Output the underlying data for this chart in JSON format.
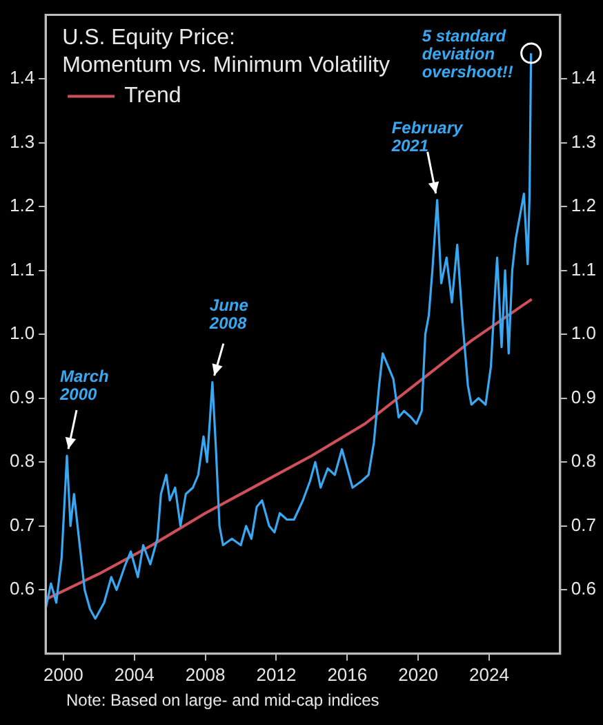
{
  "chart_data": {
    "type": "line",
    "title": "U.S. Equity Price:",
    "subtitle": "Momentum vs. Minimum Volatility",
    "xlim": [
      1999,
      2028
    ],
    "xticks": [
      2000,
      2004,
      2008,
      2012,
      2016,
      2020,
      2024
    ],
    "ylim": [
      0.5,
      1.5
    ],
    "yticks": [
      0.6,
      0.7,
      0.8,
      0.9,
      {
        "value": 1,
        "label": "1.0"
      },
      1.1,
      1.2,
      1.3,
      1.4
    ],
    "y2lim": [
      0.5,
      1.5
    ],
    "y2ticks": [
      0.6,
      0.7,
      0.8,
      0.9,
      {
        "value": 1,
        "label": "1.0"
      },
      1.1,
      1.2,
      1.3,
      1.4
    ],
    "grid": false,
    "legend": "top left",
    "marker": "none",
    "line_style": "solid",
    "series": [
      {
        "color": "#38a8f2",
        "x": [
          1999.0,
          1999.3,
          1999.6,
          1999.9,
          2000.2,
          2000.4,
          2000.6,
          2000.8,
          2001.0,
          2001.2,
          2001.5,
          2001.8,
          2002.3,
          2002.7,
          2003.0,
          2003.5,
          2003.8,
          2004.2,
          2004.5,
          2004.9,
          2005.3,
          2005.5,
          2005.8,
          2006.0,
          2006.3,
          2006.6,
          2006.9,
          2007.3,
          2007.6,
          2007.9,
          2008.1,
          2008.4,
          2008.6,
          2008.8,
          2009.0,
          2009.5,
          2010.0,
          2010.3,
          2010.6,
          2010.9,
          2011.2,
          2011.6,
          2011.9,
          2012.2,
          2012.6,
          2013.0,
          2013.5,
          2013.9,
          2014.2,
          2014.5,
          2014.9,
          2015.3,
          2015.7,
          2016.0,
          2016.3,
          2016.8,
          2017.2,
          2017.5,
          2017.8,
          2018.0,
          2018.3,
          2018.6,
          2018.9,
          2019.2,
          2019.6,
          2019.9,
          2020.2,
          2020.4,
          2020.6,
          2020.8,
          2021.07,
          2021.3,
          2021.6,
          2021.9,
          2022.2,
          2022.5,
          2022.8,
          2023.0,
          2023.4,
          2023.8,
          2024.1,
          2024.3,
          2024.45,
          2024.7,
          2024.9,
          2025.1,
          2025.3,
          2025.5,
          2025.96,
          2026.17,
          2026.28,
          2026.36
        ],
        "values": [
          0.57,
          0.61,
          0.58,
          0.65,
          0.81,
          0.7,
          0.75,
          0.7,
          0.65,
          0.6,
          0.57,
          0.555,
          0.58,
          0.62,
          0.6,
          0.64,
          0.66,
          0.62,
          0.67,
          0.64,
          0.68,
          0.75,
          0.78,
          0.74,
          0.76,
          0.7,
          0.75,
          0.76,
          0.78,
          0.84,
          0.8,
          0.925,
          0.82,
          0.7,
          0.67,
          0.68,
          0.67,
          0.7,
          0.68,
          0.73,
          0.74,
          0.7,
          0.69,
          0.72,
          0.71,
          0.71,
          0.74,
          0.77,
          0.8,
          0.76,
          0.79,
          0.78,
          0.82,
          0.79,
          0.76,
          0.77,
          0.78,
          0.83,
          0.92,
          0.97,
          0.95,
          0.93,
          0.87,
          0.88,
          0.87,
          0.86,
          0.88,
          1.0,
          1.03,
          1.1,
          1.21,
          1.08,
          1.12,
          1.05,
          1.14,
          1.02,
          0.92,
          0.89,
          0.9,
          0.89,
          0.95,
          1.05,
          1.12,
          0.98,
          1.1,
          0.97,
          1.1,
          1.15,
          1.22,
          1.11,
          1.22,
          1.44
        ]
      },
      {
        "name": "Trend",
        "color": "#d0505a",
        "x": [
          1999,
          2002,
          2005,
          2008,
          2011,
          2014,
          2017,
          2020,
          2023,
          2026.4
        ],
        "values": [
          0.585,
          0.625,
          0.67,
          0.72,
          0.765,
          0.81,
          0.86,
          0.925,
          0.99,
          1.055
        ]
      }
    ],
    "annotations": [
      {
        "text": "March 2000",
        "x": 2000.2,
        "y": 0.81
      },
      {
        "text": "June 2008",
        "x": 2008.4,
        "y": 0.925
      },
      {
        "text": "February 2021",
        "x": 2021.07,
        "y": 1.21
      },
      {
        "text": "5 standard deviation overshoot!!",
        "x": 2026.36,
        "y": 1.44
      },
      "Note: Based on large- and mid-cap indices"
    ]
  }
}
